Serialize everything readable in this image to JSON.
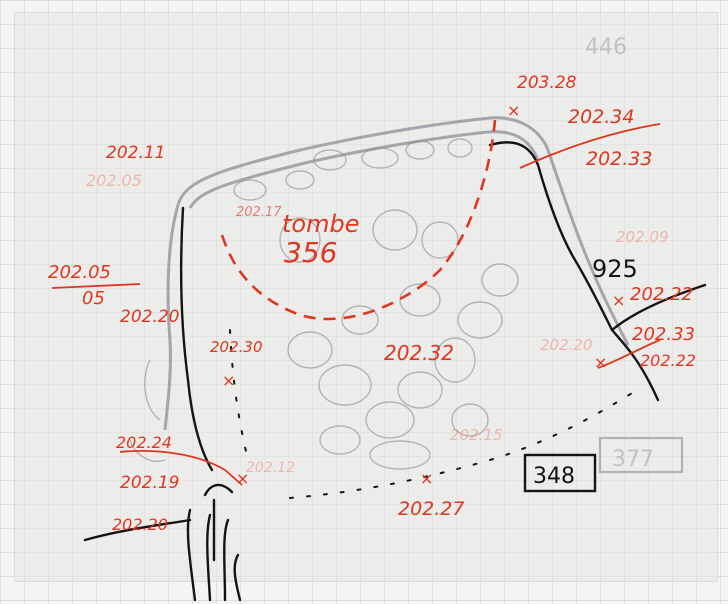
{
  "drawing": {
    "context": {
      "number": "925",
      "box_black": "348",
      "box_grey": "377",
      "under_sheet": "446"
    },
    "feature": {
      "name": "tombe",
      "number": "356"
    },
    "levels": {
      "l_20328": "203.28",
      "l_20234": "202.34",
      "l_20233_top": "202.33",
      "l_20211": "202.11",
      "l_20205_faint": "202.05",
      "l_20205_frac": "202.05",
      "l_frac_denom": "05",
      "l_20217_inner": "202.17",
      "l_20209": "202.09",
      "l_20222_right": "202.22",
      "l_20233_right": "202.33",
      "l_20222_low": "202.22",
      "l_20220_left": "202.20",
      "l_20230": "202.30",
      "l_20232_center": "202.32",
      "l_20215": "202.15",
      "l_20224": "202.24",
      "l_20219": "202.19",
      "l_20212": "202.12",
      "l_20220_bottom": "202.20",
      "l_20227": "202.27",
      "l_20220_right_faint": "202.20"
    }
  }
}
